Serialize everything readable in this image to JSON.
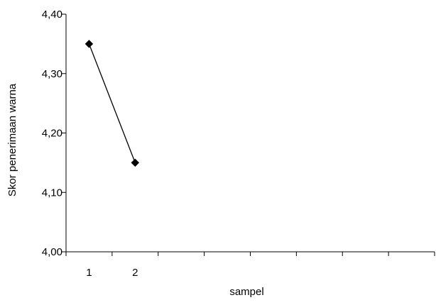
{
  "chart_data": {
    "type": "line",
    "title": "",
    "xlabel": "sampel",
    "ylabel": "Skor penerimaan warna",
    "x_categories": [
      "1",
      "2",
      "",
      "",
      "",
      "",
      "",
      ""
    ],
    "y_ticks": [
      "4,00",
      "4,10",
      "4,20",
      "4,30",
      "4,40"
    ],
    "ylim": [
      4.0,
      4.4
    ],
    "series": [
      {
        "values": [
          4.35,
          4.15
        ],
        "color": "#000000",
        "marker": "diamond"
      }
    ],
    "grid": false,
    "legend": "none"
  }
}
